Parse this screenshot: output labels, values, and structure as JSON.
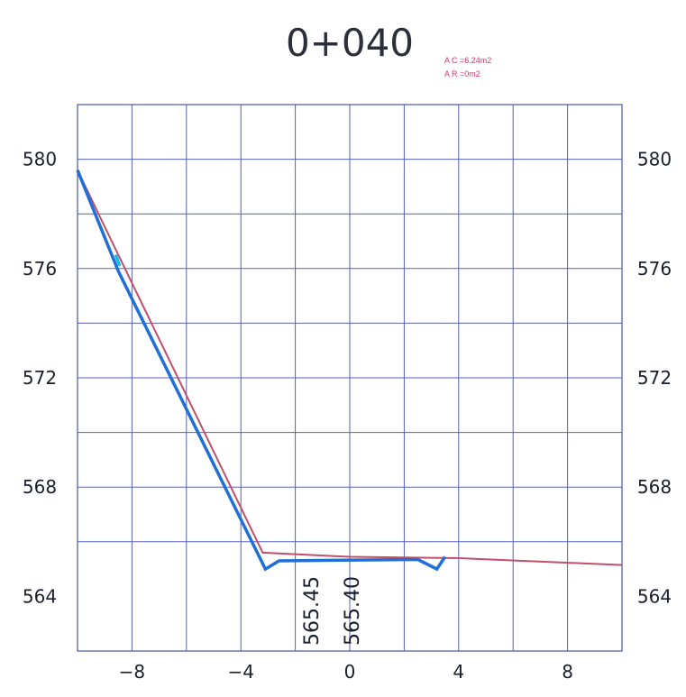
{
  "chart_data": {
    "type": "line",
    "title": "0+040",
    "annotations": [
      "A C =6.24m2",
      "A R =0m2"
    ],
    "elevation_labels": [
      {
        "text": "565.45",
        "x": -1
      },
      {
        "text": "565.40",
        "x": 0.5
      }
    ],
    "xlim": [
      -10,
      10
    ],
    "ylim": [
      562,
      582
    ],
    "x_major_ticks": [
      -8,
      -4,
      0,
      4,
      8
    ],
    "x_grid": [
      -8,
      -6,
      -4,
      -2,
      0,
      2,
      4,
      6,
      8
    ],
    "y_major_ticks": [
      580,
      576,
      572,
      568,
      564
    ],
    "y_grid": [
      566,
      568,
      570,
      572,
      574,
      576,
      578,
      580
    ],
    "y_labels_both_sides": true,
    "grid": true,
    "series": [
      {
        "role": "ground",
        "color": "#c0506a",
        "points": [
          [
            -10,
            579.6
          ],
          [
            -8.6,
            576.7
          ],
          [
            -3.2,
            565.6
          ],
          [
            0,
            565.45
          ],
          [
            4,
            565.4
          ],
          [
            10,
            565.15
          ]
        ]
      },
      {
        "role": "design",
        "color": "#1f6fd6",
        "points": [
          [
            -10,
            579.6
          ],
          [
            -8.5,
            575.9
          ],
          [
            -3.1,
            565.0
          ],
          [
            -2.6,
            565.3
          ],
          [
            2.5,
            565.35
          ],
          [
            3.2,
            565.0
          ],
          [
            3.5,
            565.45
          ]
        ]
      },
      {
        "role": "design-slope-start",
        "color": "#17b8e6",
        "points": [
          [
            -8.6,
            576.5
          ],
          [
            -8.45,
            576.1
          ]
        ]
      }
    ]
  }
}
